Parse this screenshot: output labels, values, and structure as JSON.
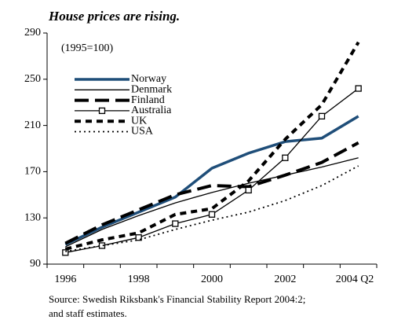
{
  "chart_data": {
    "type": "line",
    "title": "House prices are rising.",
    "annotation": "(1995=100)",
    "categories": [
      "1996",
      null,
      "1998",
      null,
      "2000",
      null,
      "2002",
      null,
      "2004 Q2"
    ],
    "ylim": [
      90,
      290
    ],
    "yticks": [
      90,
      130,
      170,
      210,
      250,
      290
    ],
    "series": [
      {
        "name": "Norway",
        "color": "#1f4e79",
        "style": "thick",
        "values": [
          107,
          122,
          135,
          148,
          173,
          186,
          196,
          199,
          218
        ]
      },
      {
        "name": "Denmark",
        "color": "#000000",
        "style": "solid",
        "values": [
          105,
          120,
          132,
          143,
          152,
          160,
          167,
          174,
          182
        ]
      },
      {
        "name": "Finland",
        "color": "#000000",
        "style": "long-dash",
        "values": [
          108,
          124,
          137,
          150,
          158,
          157,
          167,
          178,
          195
        ]
      },
      {
        "name": "Australia",
        "color": "#000000",
        "style": "solid-square",
        "values": [
          100,
          106,
          113,
          125,
          133,
          154,
          182,
          218,
          242
        ]
      },
      {
        "name": "UK",
        "color": "#000000",
        "style": "dash",
        "values": [
          103,
          111,
          117,
          133,
          138,
          162,
          198,
          228,
          282
        ]
      },
      {
        "name": "USA",
        "color": "#000000",
        "style": "dot",
        "values": [
          101,
          106,
          111,
          120,
          128,
          135,
          145,
          158,
          175
        ]
      }
    ],
    "source": [
      "Source: Swedish Riksbank's Financial Stability Report 2004:2;",
      "and staff estimates."
    ]
  }
}
